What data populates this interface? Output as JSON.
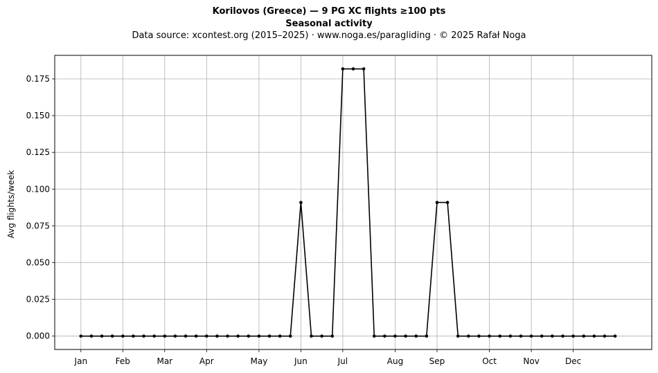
{
  "header": {
    "title": "Korilovos (Greece)  —  9 PG XC flights ≥100 pts",
    "subtitle": "Seasonal activity",
    "source": "Data source: xcontest.org (2015–2025)  ·  www.noga.es/paragliding  ·  © 2025 Rafał Noga"
  },
  "chart_data": {
    "type": "line",
    "title": "Korilovos (Greece)  —  9 PG XC flights ≥100 pts",
    "subtitle": "Seasonal activity",
    "xlabel": "",
    "ylabel": "Avg flights/week",
    "x_unit": "week of year",
    "xlim": [
      -2.5,
      54.5
    ],
    "ylim": [
      -0.0091,
      0.191
    ],
    "grid": true,
    "color": "#000000",
    "marker": "circle",
    "y_ticks": [
      "0.000",
      "0.025",
      "0.050",
      "0.075",
      "0.100",
      "0.125",
      "0.150",
      "0.175"
    ],
    "x_ticks": [
      {
        "label": "Jan",
        "x": 0
      },
      {
        "label": "Feb",
        "x": 4
      },
      {
        "label": "Mar",
        "x": 8
      },
      {
        "label": "Apr",
        "x": 12
      },
      {
        "label": "May",
        "x": 17
      },
      {
        "label": "Jun",
        "x": 21
      },
      {
        "label": "Jul",
        "x": 25
      },
      {
        "label": "Aug",
        "x": 30
      },
      {
        "label": "Sep",
        "x": 34
      },
      {
        "label": "Oct",
        "x": 39
      },
      {
        "label": "Nov",
        "x": 43
      },
      {
        "label": "Dec",
        "x": 47
      }
    ],
    "series": [
      {
        "x": [
          0,
          1,
          2,
          3,
          4,
          5,
          6,
          7,
          8,
          9,
          10,
          11,
          12,
          13,
          14,
          15,
          16,
          17,
          18,
          19,
          20,
          21,
          22,
          23,
          24,
          25,
          26,
          27,
          28,
          29,
          30,
          31,
          32,
          33,
          34,
          35,
          36,
          37,
          38,
          39,
          40,
          41,
          42,
          43,
          44,
          45,
          46,
          47,
          48,
          49,
          50,
          51
        ],
        "values": [
          0,
          0,
          0,
          0,
          0,
          0,
          0,
          0,
          0,
          0,
          0,
          0,
          0,
          0,
          0,
          0,
          0,
          0,
          0,
          0,
          0,
          0.0909,
          0,
          0,
          0,
          0.1818,
          0.1818,
          0.1818,
          0,
          0,
          0,
          0,
          0,
          0,
          0.0909,
          0.0909,
          0,
          0,
          0,
          0,
          0,
          0,
          0,
          0,
          0,
          0,
          0,
          0,
          0,
          0,
          0,
          0
        ]
      }
    ]
  }
}
